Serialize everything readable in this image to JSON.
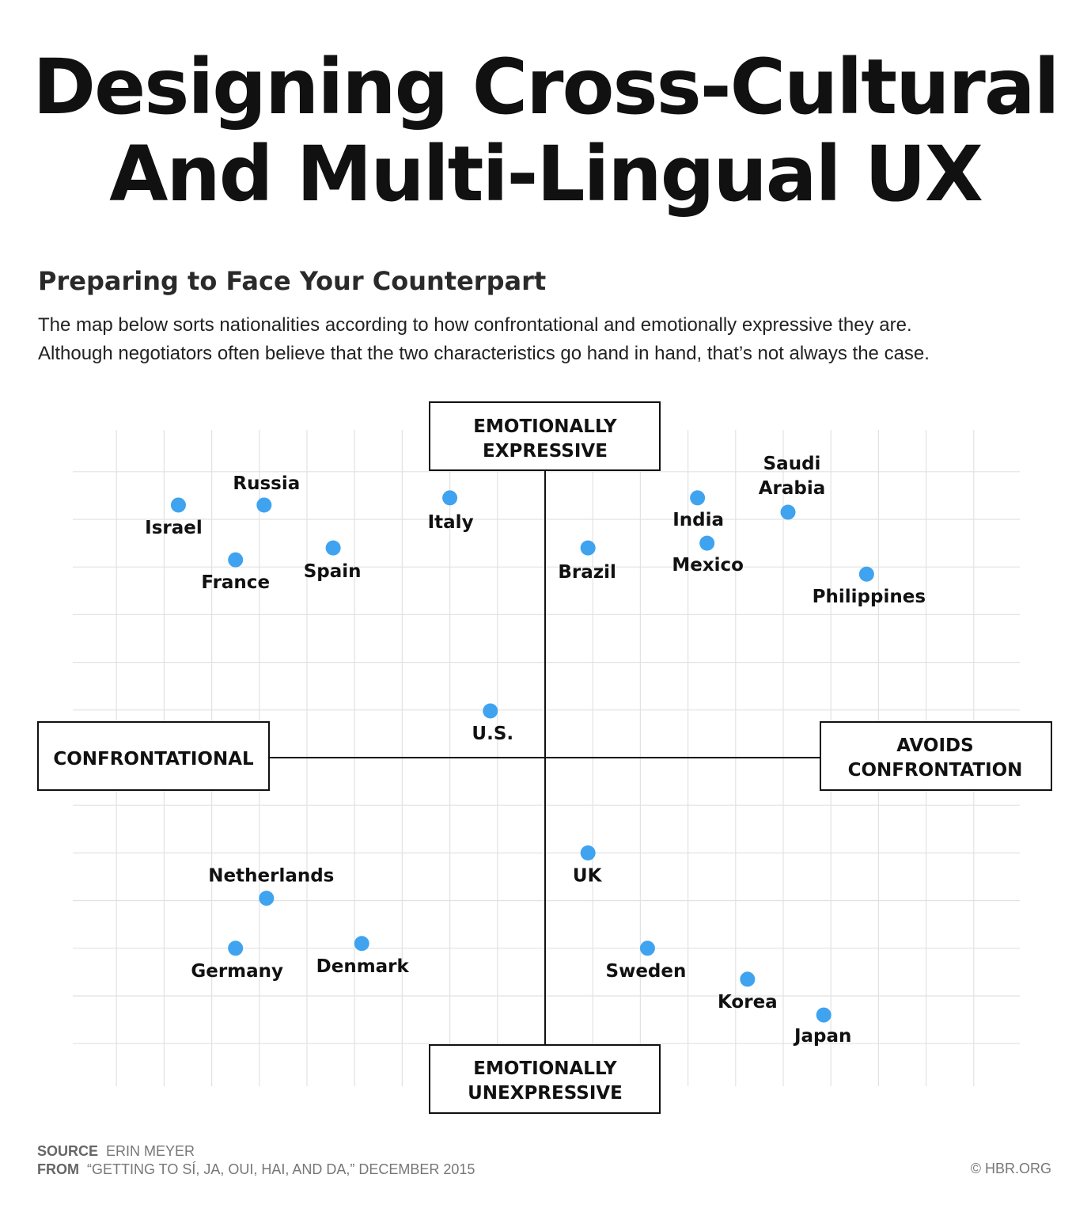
{
  "banner": {
    "title_line1": "Designing Cross-Cultural",
    "title_line2": "And Multi-Lingual UX"
  },
  "chart_data": {
    "type": "scatter",
    "title": "Preparing to Face Your Counterpart",
    "subtitle_line1": "The map below sorts nationalities according to how confrontational and emotionally expressive they are.",
    "subtitle_line2": "Although negotiators often believe that the two characteristics go hand in hand, that’s not always the case.",
    "x_axis": {
      "left_label": "CONFRONTATIONAL",
      "right_label_line1": "AVOIDS",
      "right_label_line2": "CONFRONTATION"
    },
    "y_axis": {
      "top_label_line1": "EMOTIONALLY",
      "top_label_line2": "EXPRESSIVE",
      "bottom_label_line1": "EMOTIONALLY",
      "bottom_label_line2": "UNEXPRESSIVE"
    },
    "xlim": [
      -9,
      9
    ],
    "ylim": [
      -6,
      6
    ],
    "grid": true,
    "point_color": "#3fa3f0",
    "points": [
      {
        "label": "Israel",
        "x": -7.7,
        "y": 5.3
      },
      {
        "label": "Russia",
        "x": -5.9,
        "y": 5.3
      },
      {
        "label": "France",
        "x": -6.5,
        "y": 4.15
      },
      {
        "label": "Spain",
        "x": -4.45,
        "y": 4.4
      },
      {
        "label": "Italy",
        "x": -2.0,
        "y": 5.45
      },
      {
        "label": "U.S.",
        "x": -1.15,
        "y": 0.98
      },
      {
        "label": "Brazil",
        "x": 0.9,
        "y": 4.4
      },
      {
        "label": "India",
        "x": 3.2,
        "y": 5.45
      },
      {
        "label": "Mexico",
        "x": 3.4,
        "y": 4.5
      },
      {
        "label": "Saudi Arabia",
        "label_line1": "Saudi",
        "label_line2": "Arabia",
        "x": 5.1,
        "y": 5.15
      },
      {
        "label": "Philippines",
        "x": 6.75,
        "y": 3.85
      },
      {
        "label": "Netherlands",
        "x": -5.85,
        "y": -2.95
      },
      {
        "label": "Germany",
        "x": -6.5,
        "y": -4.0
      },
      {
        "label": "Denmark",
        "x": -3.85,
        "y": -3.9
      },
      {
        "label": "UK",
        "x": 0.9,
        "y": -2.0
      },
      {
        "label": "Sweden",
        "x": 2.15,
        "y": -4.0
      },
      {
        "label": "Korea",
        "x": 4.25,
        "y": -4.65
      },
      {
        "label": "Japan",
        "x": 5.85,
        "y": -5.4
      }
    ]
  },
  "footer": {
    "source_key": "SOURCE",
    "source_value": "ERIN MEYER",
    "from_key": "FROM",
    "from_value": "“GETTING TO SÍ, JA, OUI, HAI, AND DA,” DECEMBER 2015",
    "credit": "© HBR.ORG"
  }
}
